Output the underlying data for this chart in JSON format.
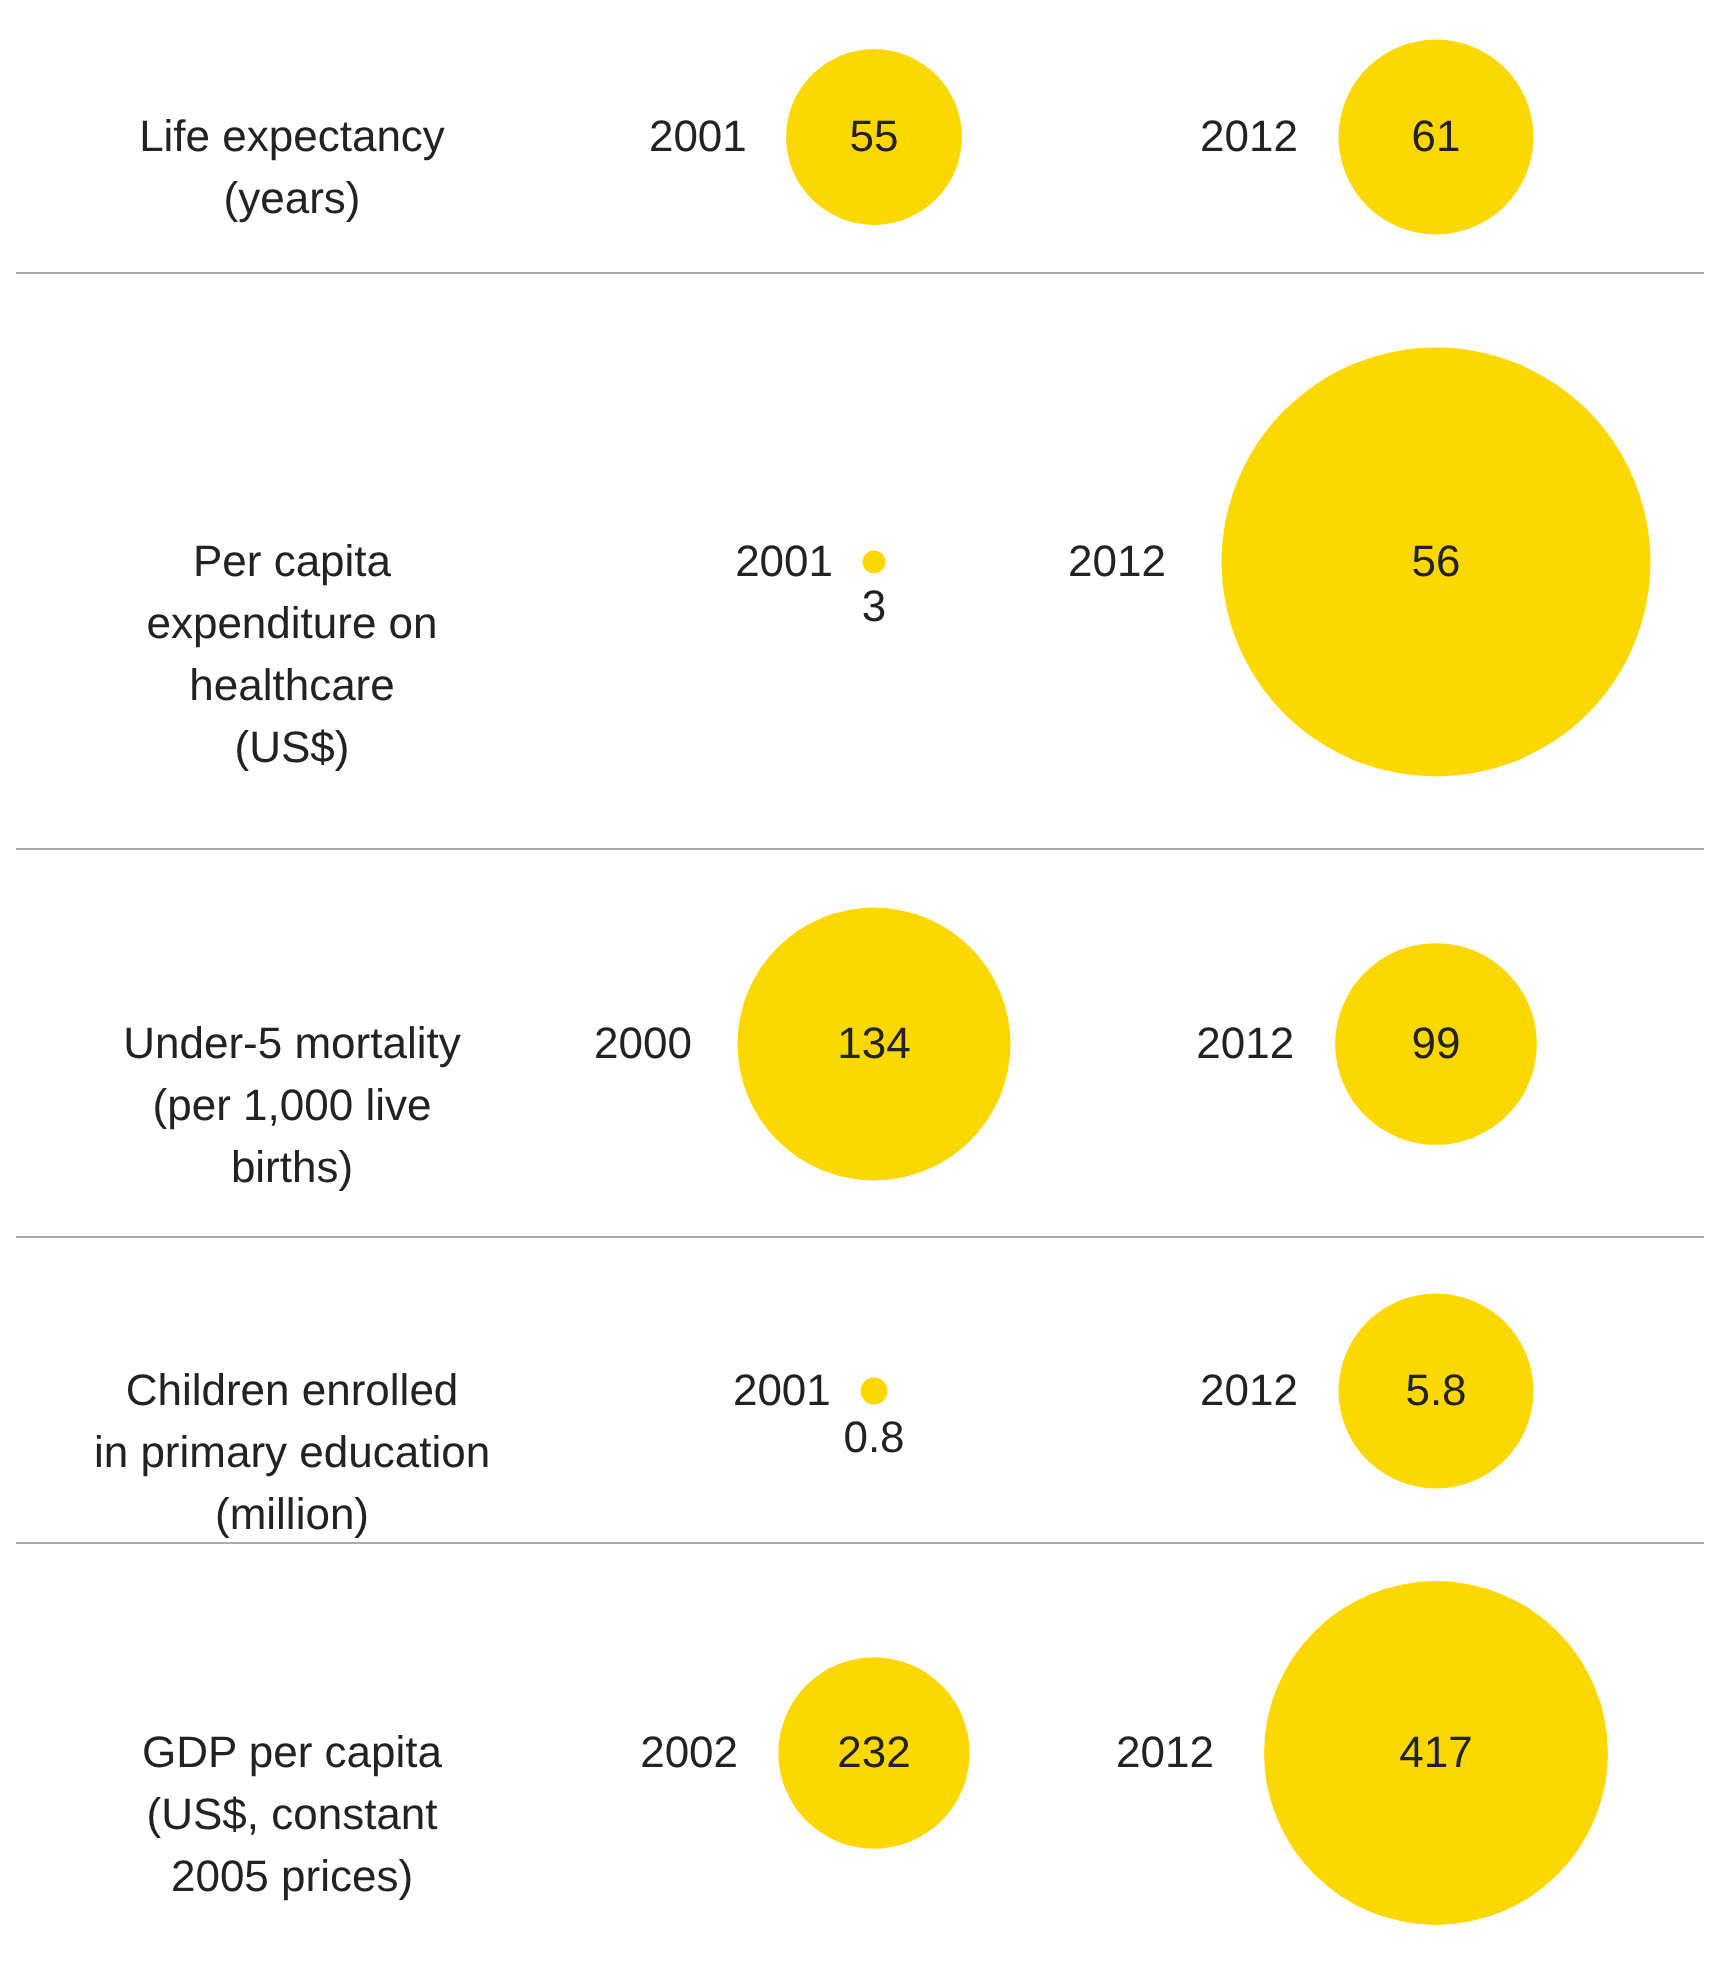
{
  "chart_data": [
    {
      "type": "other",
      "title": "Life expectancy\n(years)",
      "categories": [
        "2001",
        "2012"
      ],
      "values": [
        55,
        61
      ],
      "color": "#fcd700",
      "data_labels": true
    },
    {
      "type": "other",
      "title": "Per capita\nexpenditure on\nhealthcare\n(US$)",
      "categories": [
        "2001",
        "2012"
      ],
      "values": [
        3,
        56
      ],
      "color": "#fcd700",
      "data_labels": true
    },
    {
      "type": "other",
      "title": "Under-5 mortality\n(per 1,000 live\nbirths)",
      "categories": [
        "2000",
        "2012"
      ],
      "values": [
        134,
        99
      ],
      "color": "#fcd700",
      "data_labels": true
    },
    {
      "type": "other",
      "title": "Children enrolled\nin primary education\n(million)",
      "categories": [
        "2001",
        "2012"
      ],
      "values": [
        0.8,
        5.8
      ],
      "color": "#fcd700",
      "data_labels": true
    },
    {
      "type": "other",
      "title": "GDP per capita\n(US$, constant\n2005 prices)",
      "categories": [
        "2002",
        "2012"
      ],
      "values": [
        232,
        417
      ],
      "color": "#fcd700",
      "data_labels": true
    }
  ]
}
